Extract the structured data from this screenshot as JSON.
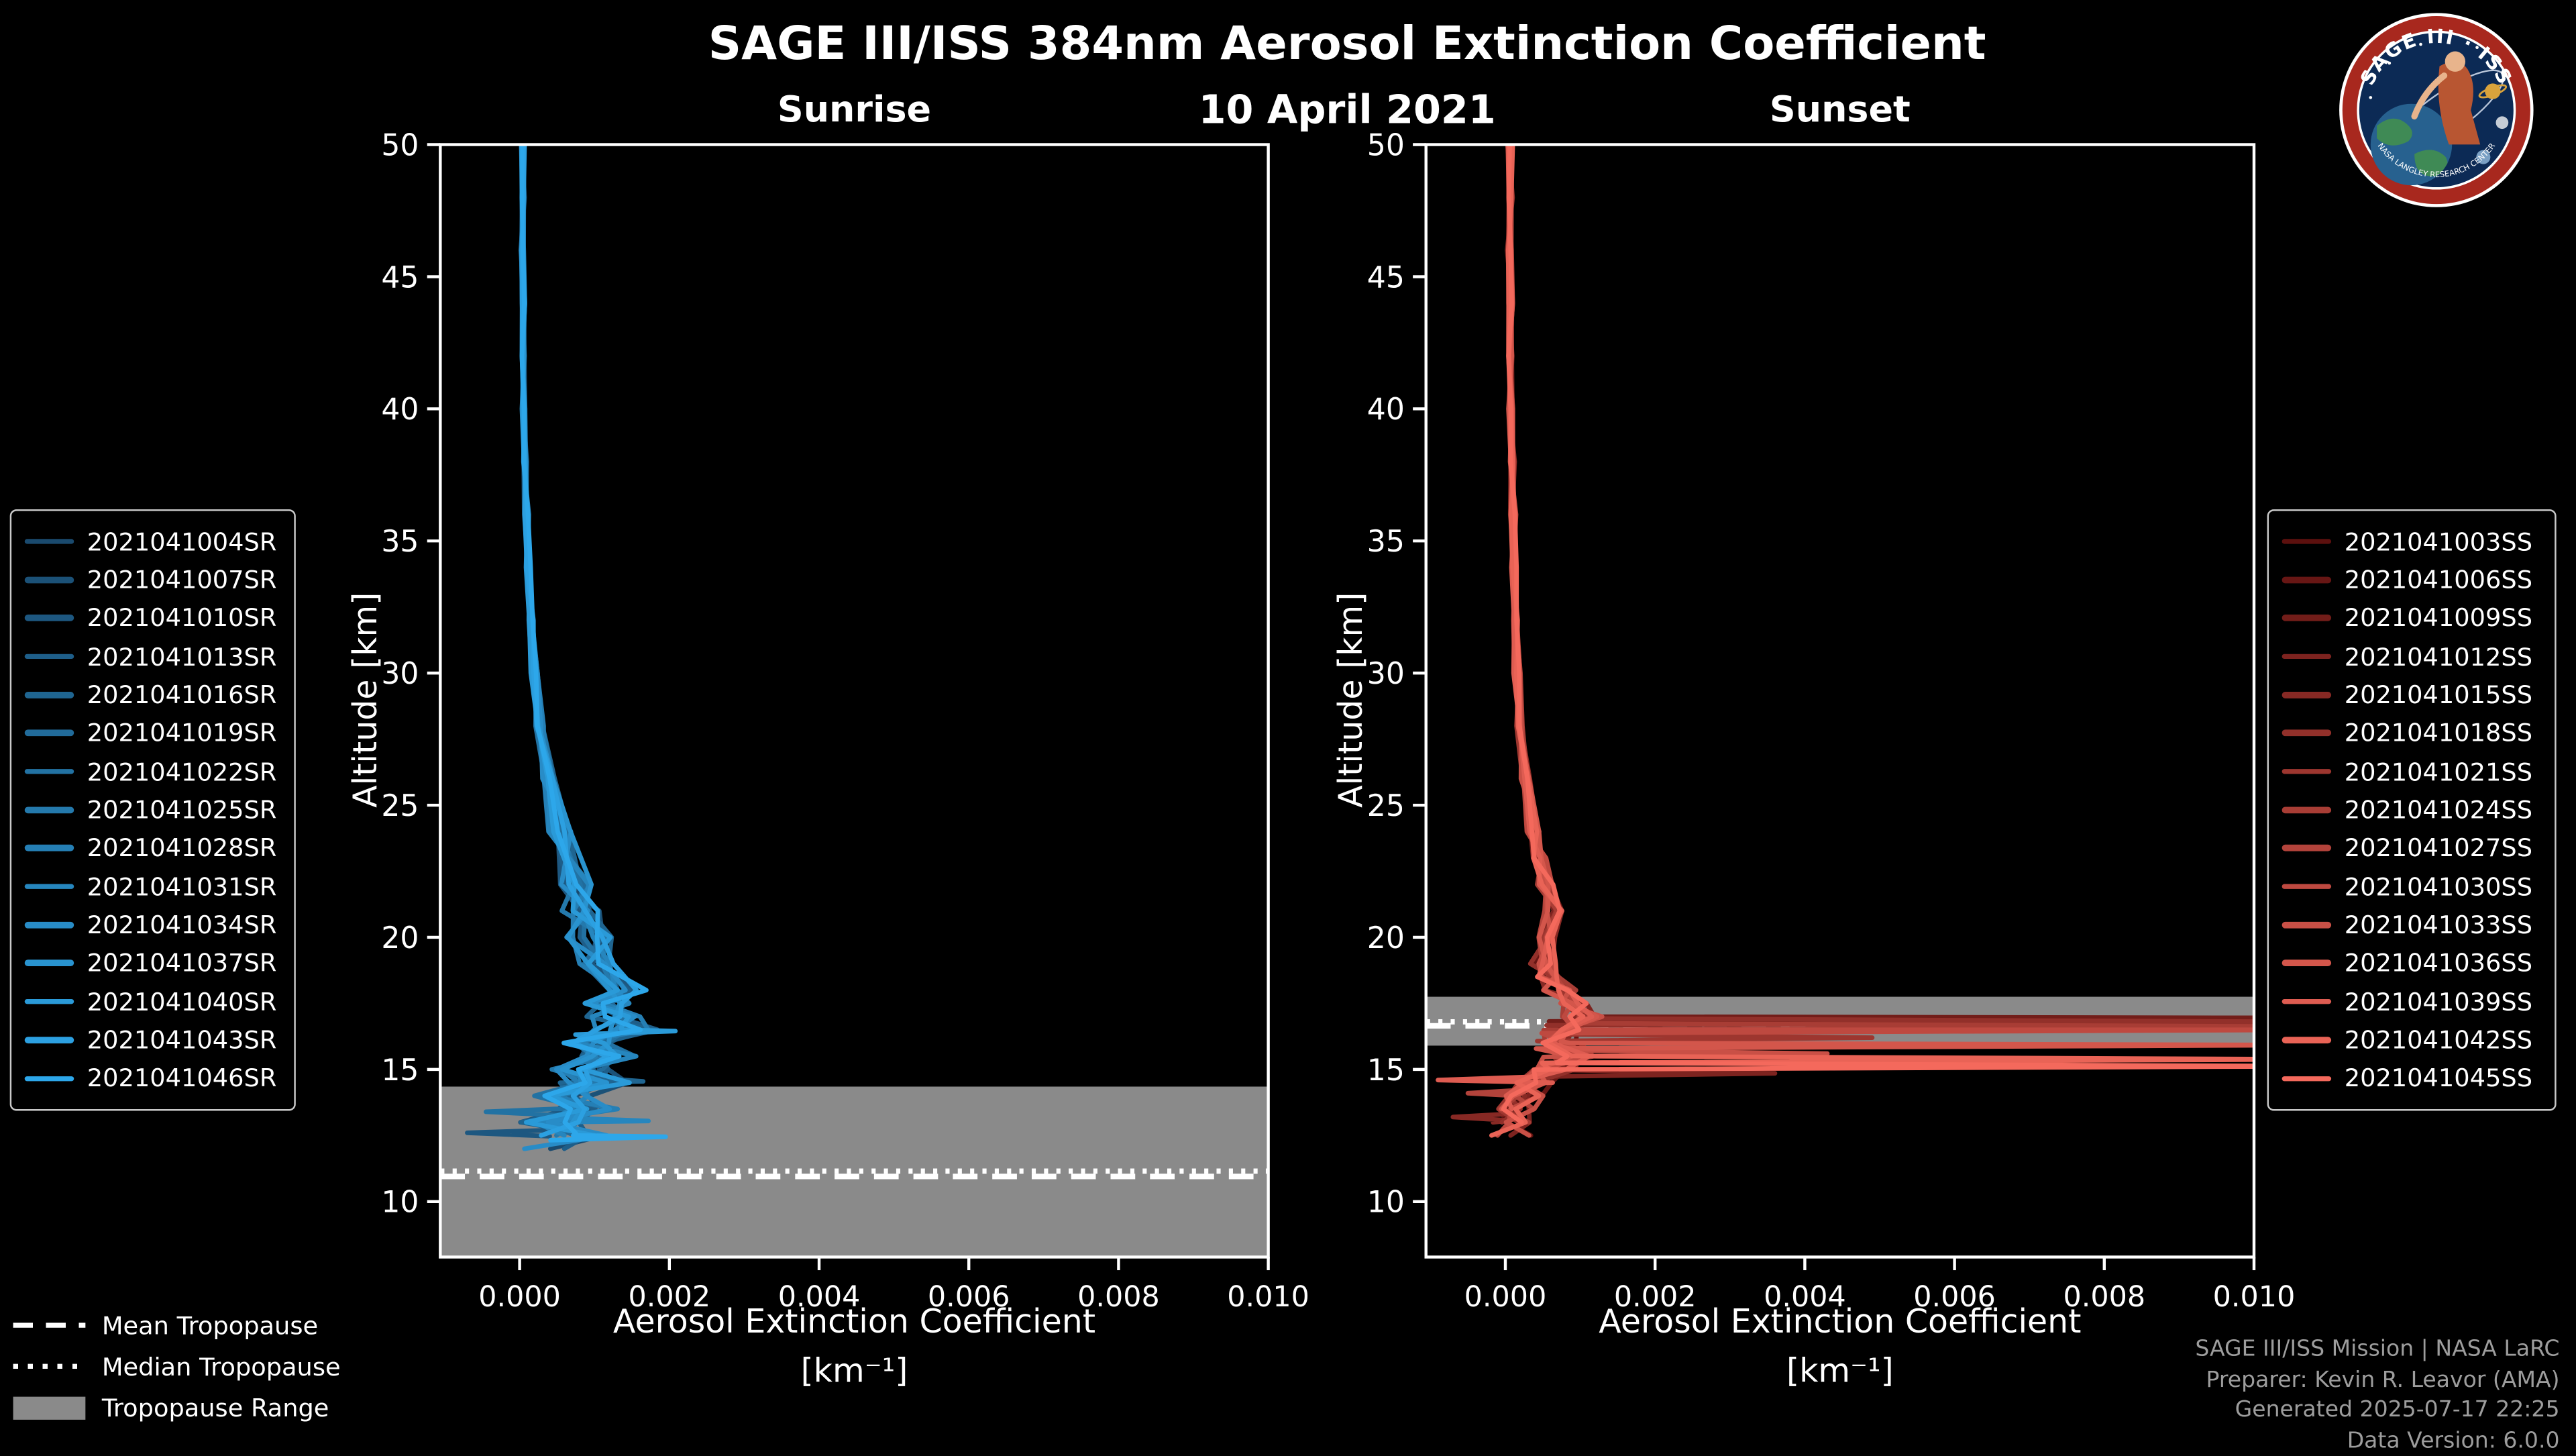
{
  "header": {
    "title": "SAGE III/ISS 384nm Aerosol Extinction Coefficient",
    "date": "10 April 2021"
  },
  "logo": {
    "top_text": "SAGE III · ISS",
    "bottom_text": "NASA LANGLEY RESEARCH CENTER"
  },
  "tropopause_legend": {
    "mean": "Mean Tropopause",
    "median": "Median Tropopause",
    "range": "Tropopause Range"
  },
  "footer": {
    "line1": "SAGE III/ISS Mission | NASA LaRC",
    "line2": "Preparer: Kevin R. Leavor (AMA)",
    "line3": "Generated 2025-07-17 22:25",
    "line4": "Data Version: 6.0.0"
  },
  "colors": {
    "background": "#000000",
    "text": "#ffffff",
    "footer_text": "#9d9d9d",
    "tropopause_range": "#8a8a8a",
    "tropopause_line": "#ffffff",
    "spine": "#ffffff",
    "legend_border": "#c9c9c9",
    "sunrise_start": "#1a4a6e",
    "sunrise_end": "#2da7ea",
    "sunset_start": "#5c100e",
    "sunset_end": "#f4695c"
  },
  "chart_data": [
    {
      "type": "line",
      "panel_id": "sunrise",
      "title": "Sunrise",
      "xlabel": "Aerosol Extinction Coefficient",
      "xlabel_units": "[km⁻¹]",
      "ylabel": "Altitude [km]",
      "xlim": [
        -0.00106,
        0.01
      ],
      "ylim": [
        7.9,
        50
      ],
      "xticks": [
        0,
        0.002,
        0.004,
        0.006,
        0.008,
        0.01
      ],
      "xtick_labels": [
        "0.000",
        "0.002",
        "0.004",
        "0.006",
        "0.008",
        "0.010"
      ],
      "yticks": [
        10,
        15,
        20,
        25,
        30,
        35,
        40,
        45,
        50
      ],
      "grid": false,
      "legend_position": "left-outside",
      "color_start": "#1a4a6e",
      "color_end": "#2da7ea",
      "line_width": 2.8,
      "tropopause": {
        "mean": 10.95,
        "median": 11.15,
        "range_low": 7.9,
        "range_high": 14.35
      },
      "series_names": [
        "2021041004SR",
        "2021041007SR",
        "2021041010SR",
        "2021041013SR",
        "2021041016SR",
        "2021041019SR",
        "2021041022SR",
        "2021041025SR",
        "2021041028SR",
        "2021041031SR",
        "2021041034SR",
        "2021041037SR",
        "2021041040SR",
        "2021041043SR",
        "2021041046SR"
      ],
      "base_profile": [
        [
          50,
          4e-05
        ],
        [
          48,
          4e-05
        ],
        [
          46,
          4e-05
        ],
        [
          44,
          5e-05
        ],
        [
          42,
          5e-05
        ],
        [
          40,
          6e-05
        ],
        [
          38,
          7e-05
        ],
        [
          36,
          9e-05
        ],
        [
          34,
          0.00012
        ],
        [
          32,
          0.00016
        ],
        [
          30,
          0.0002
        ],
        [
          28,
          0.00028
        ],
        [
          26,
          0.0004
        ],
        [
          24,
          0.00055
        ],
        [
          22,
          0.00075
        ],
        [
          21,
          0.00085
        ],
        [
          20,
          0.00095
        ],
        [
          19,
          0.00115
        ],
        [
          18,
          0.00125
        ],
        [
          17.5,
          0.00112
        ],
        [
          17,
          0.00126
        ],
        [
          16.5,
          0.0014
        ],
        [
          16,
          0.00095
        ],
        [
          15.5,
          0.00115
        ],
        [
          15,
          0.0008
        ],
        [
          14.5,
          0.00105
        ],
        [
          14,
          0.0006
        ],
        [
          13.5,
          0.00095
        ],
        [
          13,
          0.00045
        ],
        [
          12.5,
          0.0008
        ],
        [
          12,
          0.0003
        ],
        [
          11.8,
          0.0004
        ]
      ],
      "jitter": {
        "amp_high": 2e-05,
        "amp_low": 0.0004,
        "transition_alt": 26,
        "floor_alt": 12,
        "mult": 0.22
      },
      "end_alt_range": [
        11.8,
        12.9
      ],
      "spikes": [
        {
          "series": 12,
          "alt": 16.45,
          "peak": 0.00208
        },
        {
          "series": 14,
          "alt": 12.45,
          "peak": 0.00195
        },
        {
          "series": 9,
          "alt": 13.05,
          "peak": 0.00172
        },
        {
          "series": 4,
          "alt": 14.55,
          "peak": 0.00165
        },
        {
          "series": 2,
          "alt": 12.6,
          "peak": -0.0007
        },
        {
          "series": 6,
          "alt": 13.4,
          "peak": -0.00045
        }
      ]
    },
    {
      "type": "line",
      "panel_id": "sunset",
      "title": "Sunset",
      "xlabel": "Aerosol Extinction Coefficient",
      "xlabel_units": "[km⁻¹]",
      "ylabel": "Altitude [km]",
      "xlim": [
        -0.00106,
        0.01
      ],
      "ylim": [
        7.9,
        50
      ],
      "xticks": [
        0,
        0.002,
        0.004,
        0.006,
        0.008,
        0.01
      ],
      "xtick_labels": [
        "0.000",
        "0.002",
        "0.004",
        "0.006",
        "0.008",
        "0.010"
      ],
      "yticks": [
        10,
        15,
        20,
        25,
        30,
        35,
        40,
        45,
        50
      ],
      "grid": false,
      "legend_position": "right-outside",
      "color_start": "#5c100e",
      "color_end": "#f4695c",
      "line_width": 2.8,
      "tropopause": {
        "mean": 16.65,
        "median": 16.8,
        "range_low": 15.9,
        "range_high": 17.75
      },
      "series_names": [
        "2021041003SS",
        "2021041006SS",
        "2021041009SS",
        "2021041012SS",
        "2021041015SS",
        "2021041018SS",
        "2021041021SS",
        "2021041024SS",
        "2021041027SS",
        "2021041030SS",
        "2021041033SS",
        "2021041036SS",
        "2021041039SS",
        "2021041042SS",
        "2021041045SS"
      ],
      "base_profile": [
        [
          50,
          6e-05
        ],
        [
          48,
          6e-05
        ],
        [
          46,
          6e-05
        ],
        [
          44,
          7e-05
        ],
        [
          42,
          7e-05
        ],
        [
          40,
          8e-05
        ],
        [
          38,
          9e-05
        ],
        [
          36,
          0.0001
        ],
        [
          34,
          0.00012
        ],
        [
          32,
          0.00014
        ],
        [
          30,
          0.00016
        ],
        [
          28,
          0.0002
        ],
        [
          26,
          0.00028
        ],
        [
          24,
          0.00038
        ],
        [
          23,
          0.00046
        ],
        [
          22,
          0.00055
        ],
        [
          21,
          0.00065
        ],
        [
          20,
          0.0006
        ],
        [
          19,
          0.00052
        ],
        [
          18.5,
          0.0006
        ],
        [
          18,
          0.0007
        ],
        [
          17.5,
          0.0009
        ],
        [
          17,
          0.00108
        ],
        [
          16.5,
          0.00088
        ],
        [
          16,
          0.0007
        ],
        [
          15.5,
          0.00098
        ],
        [
          15,
          0.0006
        ],
        [
          14.5,
          0.0004
        ],
        [
          14,
          0.00025
        ],
        [
          13.5,
          0.00016
        ],
        [
          13,
          0.0001
        ],
        [
          12.5,
          8e-05
        ]
      ],
      "jitter": {
        "amp_high": 3e-05,
        "amp_low": 0.00028,
        "transition_alt": 22,
        "floor_alt": 12.5,
        "mult": 0.2
      },
      "end_alt_range": [
        12.0,
        13.6
      ],
      "spikes": [
        {
          "series": 2,
          "alt": 16.95,
          "peak": 0.0108
        },
        {
          "series": 5,
          "alt": 16.8,
          "peak": 0.0108
        },
        {
          "series": 7,
          "alt": 16.62,
          "peak": 0.0108
        },
        {
          "series": 9,
          "alt": 16.5,
          "peak": 0.0108
        },
        {
          "series": 11,
          "alt": 15.92,
          "peak": 0.0108
        },
        {
          "series": 13,
          "alt": 15.38,
          "peak": 0.0108
        },
        {
          "series": 14,
          "alt": 15.12,
          "peak": 0.0108
        },
        {
          "series": 6,
          "alt": 16.2,
          "peak": 0.0049
        },
        {
          "series": 10,
          "alt": 15.6,
          "peak": 0.0043
        },
        {
          "series": 3,
          "alt": 14.85,
          "peak": 0.0036
        },
        {
          "series": 4,
          "alt": 13.2,
          "peak": -0.0007
        },
        {
          "series": 8,
          "alt": 14.1,
          "peak": -0.0005
        },
        {
          "series": 12,
          "alt": 14.6,
          "peak": -0.0009
        }
      ]
    }
  ]
}
